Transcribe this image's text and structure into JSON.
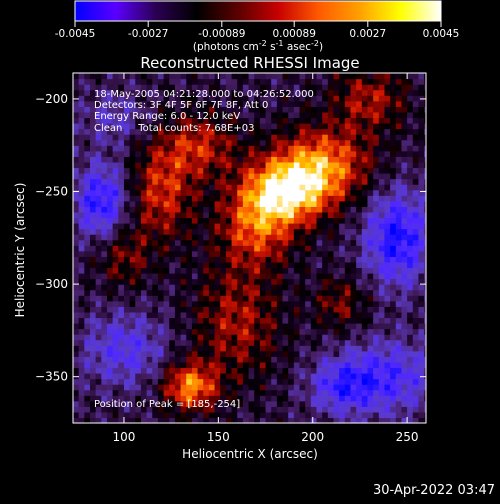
{
  "colorbar": {
    "tick_labels": [
      "-0.0045",
      "-0.0027",
      "-0.00089",
      "0.00089",
      "0.0027",
      "0.0045"
    ],
    "range": [
      -0.0045,
      0.0045
    ],
    "label_prefix": "(photons cm",
    "label_exp1": "-2",
    "label_mid": " s",
    "label_exp2": "-1",
    "label_mid2": " asec",
    "label_exp3": "-2",
    "label_suffix": ")",
    "colors": [
      "#0000ff",
      "#5a00ff",
      "#2a0050",
      "#000000",
      "#5a0000",
      "#c80000",
      "#ff5a00",
      "#ffa000",
      "#ffff00",
      "#ffffff"
    ]
  },
  "chart_data": {
    "type": "heatmap",
    "title": "Reconstructed RHESSI Image",
    "xlabel": "Heliocentric X (arcsec)",
    "ylabel": "Heliocentric Y (arcsec)",
    "xlim": [
      73,
      260
    ],
    "ylim": [
      -375,
      -186
    ],
    "x_ticks": [
      100,
      150,
      200,
      250
    ],
    "y_ticks": [
      -200,
      -250,
      -300,
      -350
    ],
    "annotations": [
      "18-May-2005 04:21:28.000 to 04:26:52.000",
      "Detectors: 3F 4F 5F 6F 7F 8F, Att 0",
      "Energy Range: 6.0 - 12.0 keV",
      "Clean     Total counts: 7.68E+03"
    ],
    "peak_label": "Position of Peak = [185,-254]",
    "peak": [
      185,
      -254
    ],
    "total_counts": "7.68E+03",
    "blobs": [
      {
        "x": 185,
        "y": -250,
        "amp": 1.0,
        "sx": 16,
        "sy": 12
      },
      {
        "x": 205,
        "y": -235,
        "amp": 0.75,
        "sx": 18,
        "sy": 14
      },
      {
        "x": 170,
        "y": -270,
        "amp": 0.6,
        "sx": 14,
        "sy": 14
      },
      {
        "x": 120,
        "y": -250,
        "amp": 0.55,
        "sx": 12,
        "sy": 18
      },
      {
        "x": 140,
        "y": -225,
        "amp": 0.5,
        "sx": 14,
        "sy": 12
      },
      {
        "x": 135,
        "y": -355,
        "amp": 0.8,
        "sx": 10,
        "sy": 9
      },
      {
        "x": 160,
        "y": -320,
        "amp": 0.45,
        "sx": 16,
        "sy": 22
      },
      {
        "x": 215,
        "y": -310,
        "amp": 0.35,
        "sx": 10,
        "sy": 10
      },
      {
        "x": 230,
        "y": -200,
        "amp": 0.45,
        "sx": 14,
        "sy": 12
      },
      {
        "x": 100,
        "y": -285,
        "amp": 0.35,
        "sx": 10,
        "sy": 12
      },
      {
        "x": 88,
        "y": -255,
        "amp": -0.7,
        "sx": 10,
        "sy": 14
      },
      {
        "x": 245,
        "y": -275,
        "amp": -0.75,
        "sx": 12,
        "sy": 18
      },
      {
        "x": 240,
        "y": -350,
        "amp": -0.55,
        "sx": 18,
        "sy": 14
      },
      {
        "x": 100,
        "y": -335,
        "amp": -0.45,
        "sx": 16,
        "sy": 14
      },
      {
        "x": 215,
        "y": -355,
        "amp": -0.5,
        "sx": 12,
        "sy": 10
      },
      {
        "x": 95,
        "y": -210,
        "amp": -0.3,
        "sx": 12,
        "sy": 10
      }
    ]
  },
  "footer": {
    "timestamp": "30-Apr-2022 03:47"
  }
}
